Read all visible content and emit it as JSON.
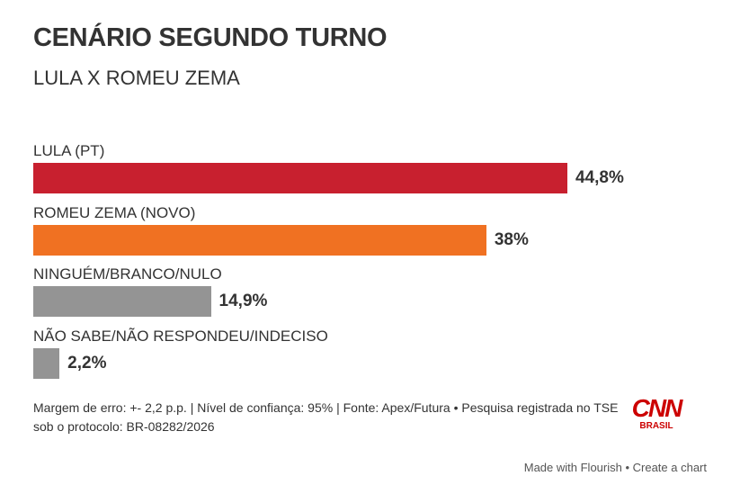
{
  "chart_data": {
    "type": "bar",
    "orientation": "horizontal",
    "title": "CENÁRIO SEGUNDO TURNO",
    "subtitle": "LULA X ROMEU ZEMA",
    "categories": [
      "LULA (PT)",
      "ROMEU ZEMA (NOVO)",
      "NINGUÉM/BRANCO/NULO",
      "NÃO SABE/NÃO RESPONDEU/INDECISO"
    ],
    "values": [
      44.8,
      38,
      14.9,
      2.2
    ],
    "labels": [
      "44,8%",
      "38%",
      "14,9%",
      "2,2%"
    ],
    "colors": [
      "#c8202f",
      "#f07122",
      "#949494",
      "#949494"
    ],
    "xlim": [
      0,
      44.8
    ],
    "grid": false
  },
  "footer": {
    "note": "Margem de erro: +- 2,2 p.p. | Nível de confiança: 95% | Fonte: Apex/Futura • Pesquisa registrada no TSE sob o protocolo: BR-08282/2026",
    "logo": "CNN BRASIL",
    "credit": "Made with Flourish • Create a chart"
  }
}
